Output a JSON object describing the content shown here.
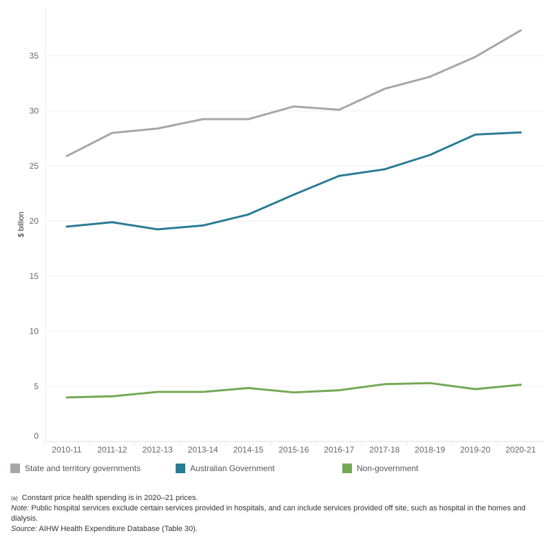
{
  "chart_data": {
    "type": "line",
    "title": "",
    "xlabel": "",
    "ylabel": "$ billion",
    "ylim": [
      0,
      37.5
    ],
    "yticks": [
      0,
      5,
      10,
      15,
      20,
      25,
      30,
      35
    ],
    "grid": true,
    "legend_placement": "bottom",
    "categories": [
      "2010-11",
      "2011-12",
      "2012-13",
      "2013-14",
      "2014-15",
      "2015-16",
      "2016-17",
      "2017-18",
      "2018-19",
      "2019-20",
      "2020-21"
    ],
    "series": [
      {
        "name": "State and territory governments",
        "color": "#a5a7a8",
        "values": [
          25.9,
          28.0,
          28.4,
          29.25,
          29.25,
          30.4,
          30.1,
          32.0,
          33.1,
          34.9,
          37.3
        ]
      },
      {
        "name": "Australian Government",
        "color": "#2a7b94",
        "values": [
          19.5,
          19.9,
          19.25,
          19.6,
          20.6,
          22.4,
          24.1,
          24.7,
          26.0,
          27.85,
          28.05
        ]
      },
      {
        "name": "Non-government",
        "color": "#74a856",
        "values": [
          4.0,
          4.1,
          4.5,
          4.5,
          4.85,
          4.45,
          4.65,
          5.2,
          5.3,
          4.75,
          5.15
        ]
      }
    ]
  },
  "notes": {
    "footnote_marker": "(a)",
    "footnote": "Constant price health spending is in 2020–21 prices.",
    "note_label": "Note:",
    "note": " Public hospital services exclude certain services provided in hospitals, and can include services provided off site, such as hospital in the homes and dialysis.",
    "source_label": "Source:",
    "source": " AIHW Health Expenditure Database (Table 30)."
  }
}
